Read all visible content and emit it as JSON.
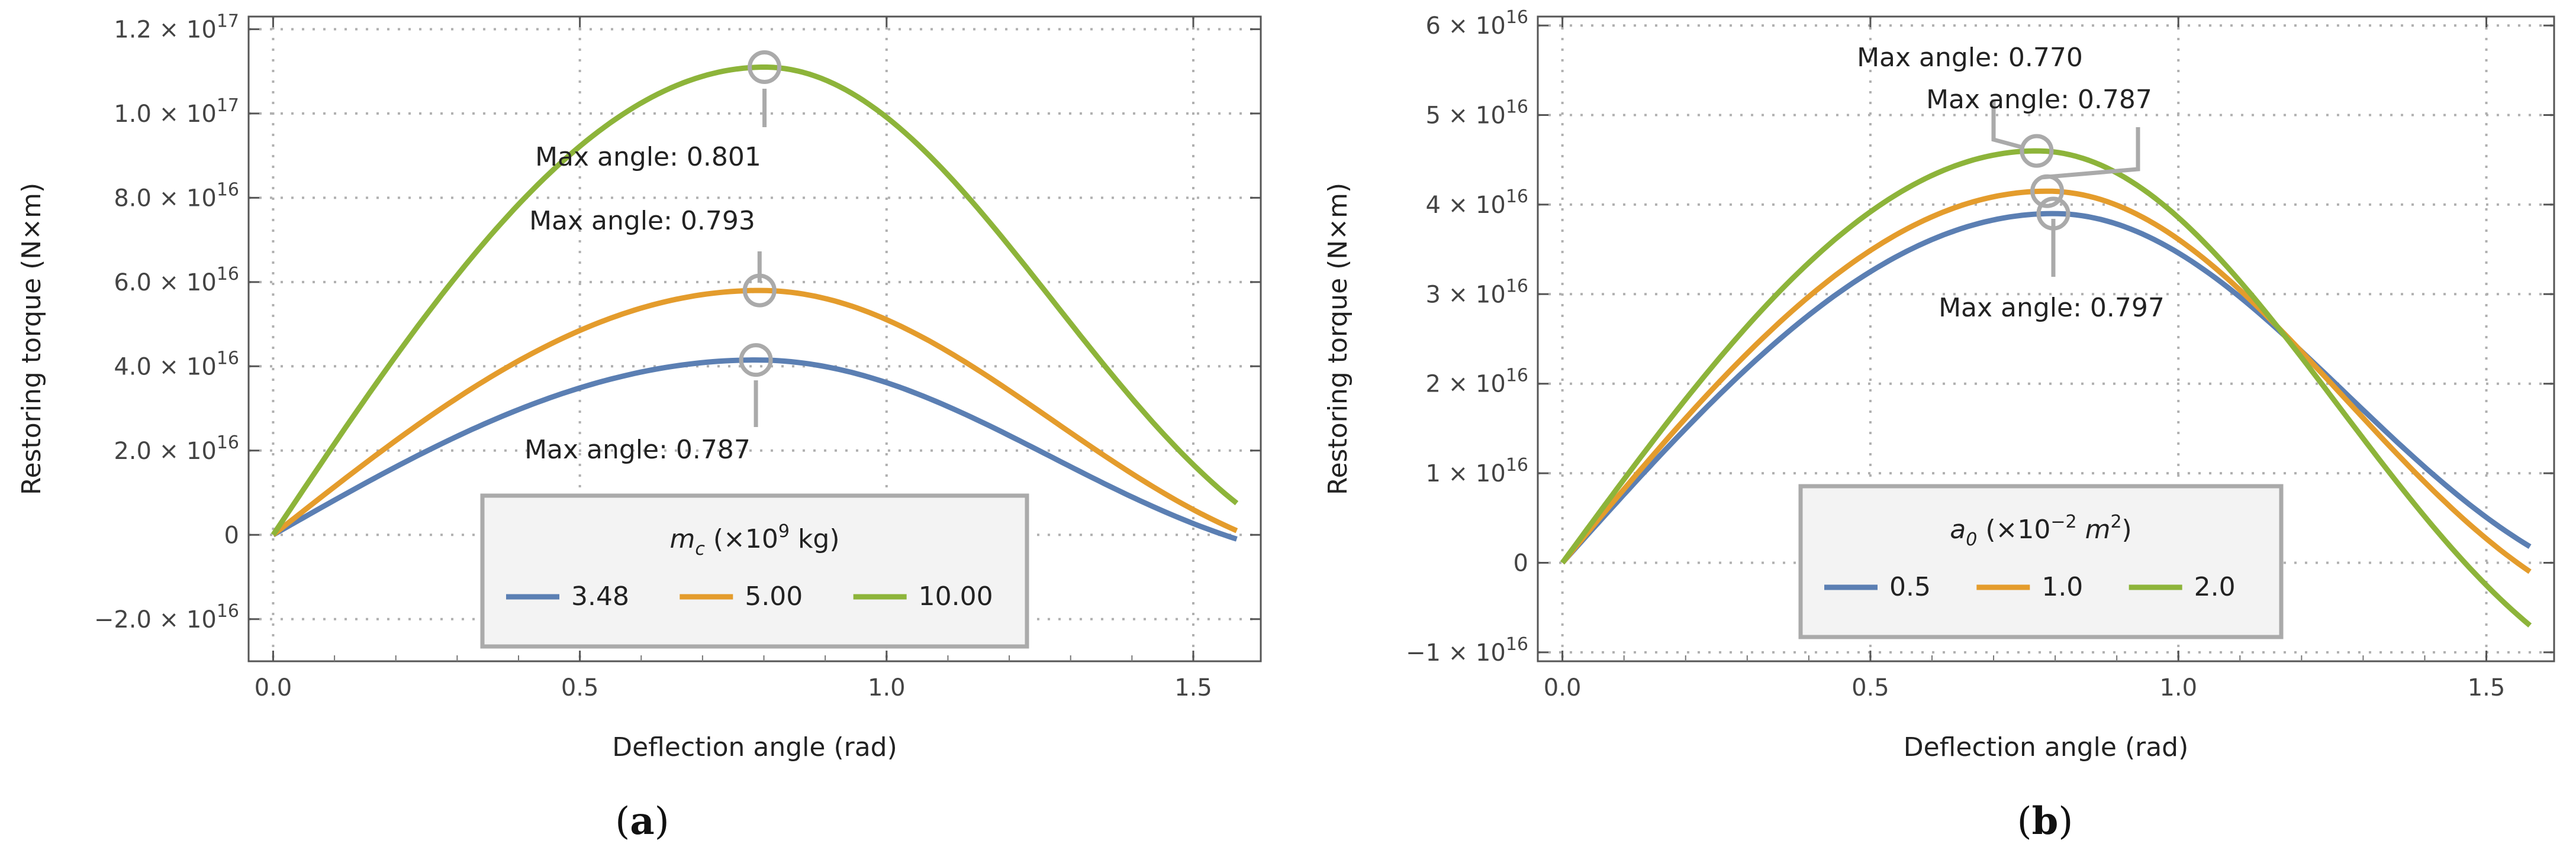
{
  "chart_data": [
    {
      "type": "line",
      "panel": "(a)",
      "xlabel": "Deflection angle (rad)",
      "ylabel": "Restoring torque (N×m)",
      "xlim": [
        -0.04,
        1.61
      ],
      "ylim": [
        -3e+16,
        1.23e+17
      ],
      "xticks": [
        0.0,
        0.5,
        1.0,
        1.5
      ],
      "xtick_labels": [
        "0.0",
        "0.5",
        "1.0",
        "1.5"
      ],
      "yticks": [
        {
          "value": -2e+16,
          "mant": "−2.0",
          "exp": "16"
        },
        {
          "value": 0,
          "mant": "0",
          "exp": ""
        },
        {
          "value": 2e+16,
          "mant": "2.0",
          "exp": "16"
        },
        {
          "value": 4e+16,
          "mant": "4.0",
          "exp": "16"
        },
        {
          "value": 6e+16,
          "mant": "6.0",
          "exp": "16"
        },
        {
          "value": 8e+16,
          "mant": "8.0",
          "exp": "16"
        },
        {
          "value": 1e+17,
          "mant": "1.0",
          "exp": "17"
        },
        {
          "value": 1.2e+17,
          "mant": "1.2",
          "exp": "17"
        }
      ],
      "legend": {
        "title": "m",
        "title_sub": "c",
        "title_rest": " (×10",
        "title_sup": "9",
        "title_end": " kg)"
      },
      "series": [
        {
          "name": "3.48",
          "color": "#5b7fb3",
          "peak_x": 0.787,
          "peak_y": 4.15e+16,
          "end_y": -1000000000000000.0
        },
        {
          "name": "5.00",
          "color": "#e49c2c",
          "peak_x": 0.793,
          "peak_y": 5.8e+16,
          "end_y": 1000000000000000.0
        },
        {
          "name": "10.00",
          "color": "#8db43a",
          "peak_x": 0.801,
          "peak_y": 1.11e+17,
          "end_y": 7500000000000000.0
        }
      ],
      "annotations": [
        {
          "text": "Max angle: 0.801",
          "series": 2
        },
        {
          "text": "Max angle: 0.793",
          "series": 1
        },
        {
          "text": "Max angle: 0.787",
          "series": 0
        }
      ],
      "caption": "(a)"
    },
    {
      "type": "line",
      "panel": "(b)",
      "xlabel": "Deflection angle (rad)",
      "ylabel": "Restoring torque (N×m)",
      "xlim": [
        -0.04,
        1.61
      ],
      "ylim": [
        -1.1e+16,
        6.1e+16
      ],
      "xticks": [
        0.0,
        0.5,
        1.0,
        1.5
      ],
      "xtick_labels": [
        "0.0",
        "0.5",
        "1.0",
        "1.5"
      ],
      "yticks": [
        {
          "value": -1e+16,
          "mant": "−1",
          "exp": "16"
        },
        {
          "value": 0,
          "mant": "0",
          "exp": ""
        },
        {
          "value": 1e+16,
          "mant": "1",
          "exp": "16"
        },
        {
          "value": 2e+16,
          "mant": "2",
          "exp": "16"
        },
        {
          "value": 3e+16,
          "mant": "3",
          "exp": "16"
        },
        {
          "value": 4e+16,
          "mant": "4",
          "exp": "16"
        },
        {
          "value": 5e+16,
          "mant": "5",
          "exp": "16"
        },
        {
          "value": 6e+16,
          "mant": "6",
          "exp": "16"
        }
      ],
      "legend": {
        "title": "a",
        "title_sub": "0",
        "title_rest": " (×10",
        "title_sup": "−2",
        "title_end": " m",
        "title_sup2": "2",
        "title_close": ")"
      },
      "series": [
        {
          "name": "0.5",
          "color": "#5b7fb3",
          "peak_x": 0.797,
          "peak_y": 3.9e+16,
          "end_y": 1800000000000000.0
        },
        {
          "name": "1.0",
          "color": "#e49c2c",
          "peak_x": 0.787,
          "peak_y": 4.15e+16,
          "end_y": -1000000000000000.0
        },
        {
          "name": "2.0",
          "color": "#8db43a",
          "peak_x": 0.77,
          "peak_y": 4.6e+16,
          "end_y": -7000000000000000.0
        }
      ],
      "annotations": [
        {
          "text": "Max angle: 0.770",
          "series": 2
        },
        {
          "text": "Max angle: 0.787",
          "series": 1
        },
        {
          "text": "Max angle: 0.797",
          "series": 0
        }
      ],
      "caption": "(b)"
    }
  ]
}
